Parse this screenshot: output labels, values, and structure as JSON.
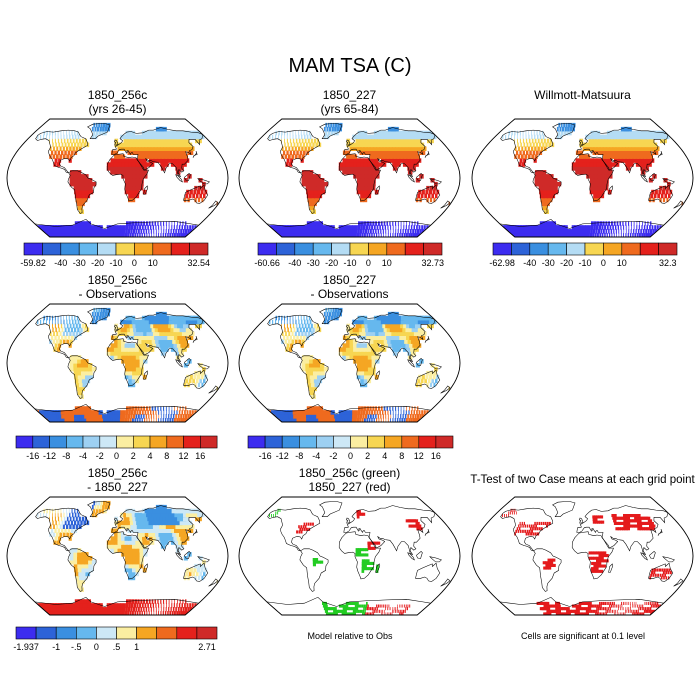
{
  "figure": {
    "title": "MAM TSA (C)",
    "panels": [
      {
        "id": "p1",
        "title": [
          "1850_256c",
          "(yrs 26-45)"
        ],
        "kind": "abs",
        "colorbar": 0
      },
      {
        "id": "p2",
        "title": [
          "1850_227",
          "(yrs 65-84)"
        ],
        "kind": "abs",
        "colorbar": 1
      },
      {
        "id": "p3",
        "title": [
          "Willmott-Matsuura"
        ],
        "kind": "abs",
        "colorbar": 2
      },
      {
        "id": "p4",
        "title": [
          "1850_256c",
          "- Observations"
        ],
        "kind": "diff",
        "colorbar": 3
      },
      {
        "id": "p5",
        "title": [
          "1850_227",
          "- Observations"
        ],
        "kind": "diff",
        "colorbar": 4
      },
      {
        "id": "p6",
        "title": [
          "1850_256c",
          "- 1850_227"
        ],
        "kind": "diff2",
        "colorbar": 5
      },
      {
        "id": "p7",
        "title": [
          "1850_256c (green)",
          "1850_227 (red)"
        ],
        "kind": "sig2",
        "colorbar": null
      },
      {
        "id": "p8",
        "title": [
          "T-Test of two Case means at each grid point"
        ],
        "kind": "sig1",
        "colorbar": null
      }
    ],
    "colorbars": [
      {
        "labels": [
          "-59.82",
          "-40",
          "-30",
          "-20",
          "-10",
          "0",
          "10",
          "32.54"
        ]
      },
      {
        "labels": [
          "-60.66",
          "-40",
          "-30",
          "-20",
          "-10",
          "0",
          "10",
          "32.73"
        ]
      },
      {
        "labels": [
          "-62.98",
          "-40",
          "-30",
          "-20",
          "-10",
          "0",
          "10",
          "32.3"
        ]
      },
      {
        "labels": [
          "-16",
          "-12",
          "-8",
          "-4",
          "-2",
          "0",
          "2",
          "4",
          "8",
          "12",
          "16"
        ]
      },
      {
        "labels": [
          "-16",
          "-12",
          "-8",
          "-4",
          "-2",
          "0",
          "2",
          "4",
          "8",
          "12",
          "16"
        ]
      },
      {
        "labels": [
          "-1.937",
          "-1",
          "-.5",
          "0",
          ".5",
          "1",
          "2.71"
        ]
      }
    ],
    "notes": {
      "model_relative": "Model relative to Obs",
      "significance": "Cells are significant at 0.1 level"
    },
    "colors": {
      "abs_scale": [
        "#3c2cf0",
        "#2d63d8",
        "#3a8fe0",
        "#66b8ee",
        "#b4dcf4",
        "#f7d652",
        "#f5a623",
        "#ef6a1e",
        "#e4211c",
        "#cf2a28"
      ],
      "diff_scale": [
        "#3c2cf0",
        "#2d63d8",
        "#3a8fe0",
        "#66b8ee",
        "#9dd0f2",
        "#cde8f6",
        "#fbeea1",
        "#f7d652",
        "#f5a623",
        "#ef6a1e",
        "#e4211c",
        "#cf2a28"
      ],
      "diff2_scale": [
        "#3c2cf0",
        "#2d63d8",
        "#3a8fe0",
        "#66b8ee",
        "#cde8f6",
        "#fbeea1",
        "#f5a623",
        "#ef6a1e",
        "#e4211c",
        "#cf2a28"
      ],
      "sig_green": "#22cc22",
      "sig_red": "#e41a1c"
    }
  }
}
